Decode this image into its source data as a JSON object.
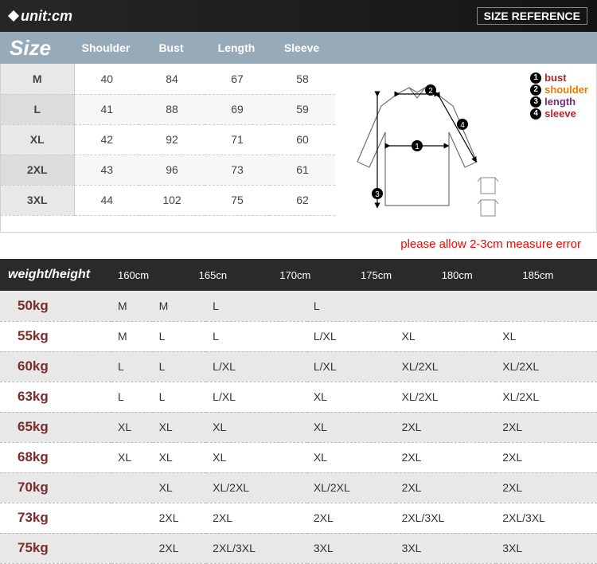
{
  "header": {
    "unit_label": "unit:cm",
    "size_reference": "SIZE REFERENCE"
  },
  "size_table": {
    "title": "Size",
    "columns": [
      "Shoulder",
      "Bust",
      "Length",
      "Sleeve"
    ],
    "rows": [
      {
        "size": "M",
        "shoulder": "40",
        "bust": "84",
        "length": "67",
        "sleeve": "58"
      },
      {
        "size": "L",
        "shoulder": "41",
        "bust": "88",
        "length": "69",
        "sleeve": "59"
      },
      {
        "size": "XL",
        "shoulder": "42",
        "bust": "92",
        "length": "71",
        "sleeve": "60"
      },
      {
        "size": "2XL",
        "shoulder": "43",
        "bust": "96",
        "length": "73",
        "sleeve": "61"
      },
      {
        "size": "3XL",
        "shoulder": "44",
        "bust": "102",
        "length": "75",
        "sleeve": "62"
      }
    ],
    "col_widths": [
      "92px",
      "82px",
      "82px",
      "82px",
      "82px"
    ]
  },
  "diagram": {
    "legend": [
      {
        "num": "1",
        "label": "bust",
        "color": "#b8232a"
      },
      {
        "num": "2",
        "label": "shoulder",
        "color": "#e87b00"
      },
      {
        "num": "3",
        "label": "length",
        "color": "#782d7a"
      },
      {
        "num": "4",
        "label": "sleeve",
        "color": "#b8232a"
      }
    ],
    "stroke_color": "#606060",
    "arrow_color": "#000000"
  },
  "warning": "please allow 2-3cm measure error",
  "wh_table": {
    "title": "weight/height",
    "height_cols": [
      "160cm",
      "165cn",
      "170cm",
      "175cm",
      "180cm",
      "185cm"
    ],
    "rows": [
      {
        "w": "50kg",
        "v": [
          "M",
          "M",
          "L",
          "L",
          "",
          ""
        ]
      },
      {
        "w": "55kg",
        "v": [
          "M",
          "L",
          "L",
          "L/XL",
          "XL",
          "XL"
        ]
      },
      {
        "w": "60kg",
        "v": [
          "L",
          "L",
          "L/XL",
          "L/XL",
          "XL/2XL",
          "XL/2XL"
        ]
      },
      {
        "w": "63kg",
        "v": [
          "L",
          "L",
          "L/XL",
          "XL",
          "XL/2XL",
          "XL/2XL"
        ]
      },
      {
        "w": "65kg",
        "v": [
          "XL",
          "XL",
          "XL",
          "XL",
          "2XL",
          "2XL"
        ]
      },
      {
        "w": "68kg",
        "v": [
          "XL",
          "XL",
          "XL",
          "XL",
          "2XL",
          "2XL"
        ]
      },
      {
        "w": "70kg",
        "v": [
          "",
          "XL",
          "XL/2XL",
          "XL/2XL",
          "2XL",
          "2XL"
        ]
      },
      {
        "w": "73kg",
        "v": [
          "",
          "2XL",
          "2XL",
          "2XL",
          "2XL/3XL",
          "2XL/3XL"
        ]
      },
      {
        "w": "75kg",
        "v": [
          "",
          "2XL",
          "2XL/3XL",
          "3XL",
          "3XL",
          "3XL"
        ]
      }
    ]
  },
  "colors": {
    "header_bg": "#1a1a1a",
    "size_header_bg": "#97aab9",
    "wh_header_bg": "#2a2a2a",
    "row_alt_bg": "#e8e8e8",
    "weight_text": "#782d2d",
    "warning_text": "#ff0000"
  }
}
